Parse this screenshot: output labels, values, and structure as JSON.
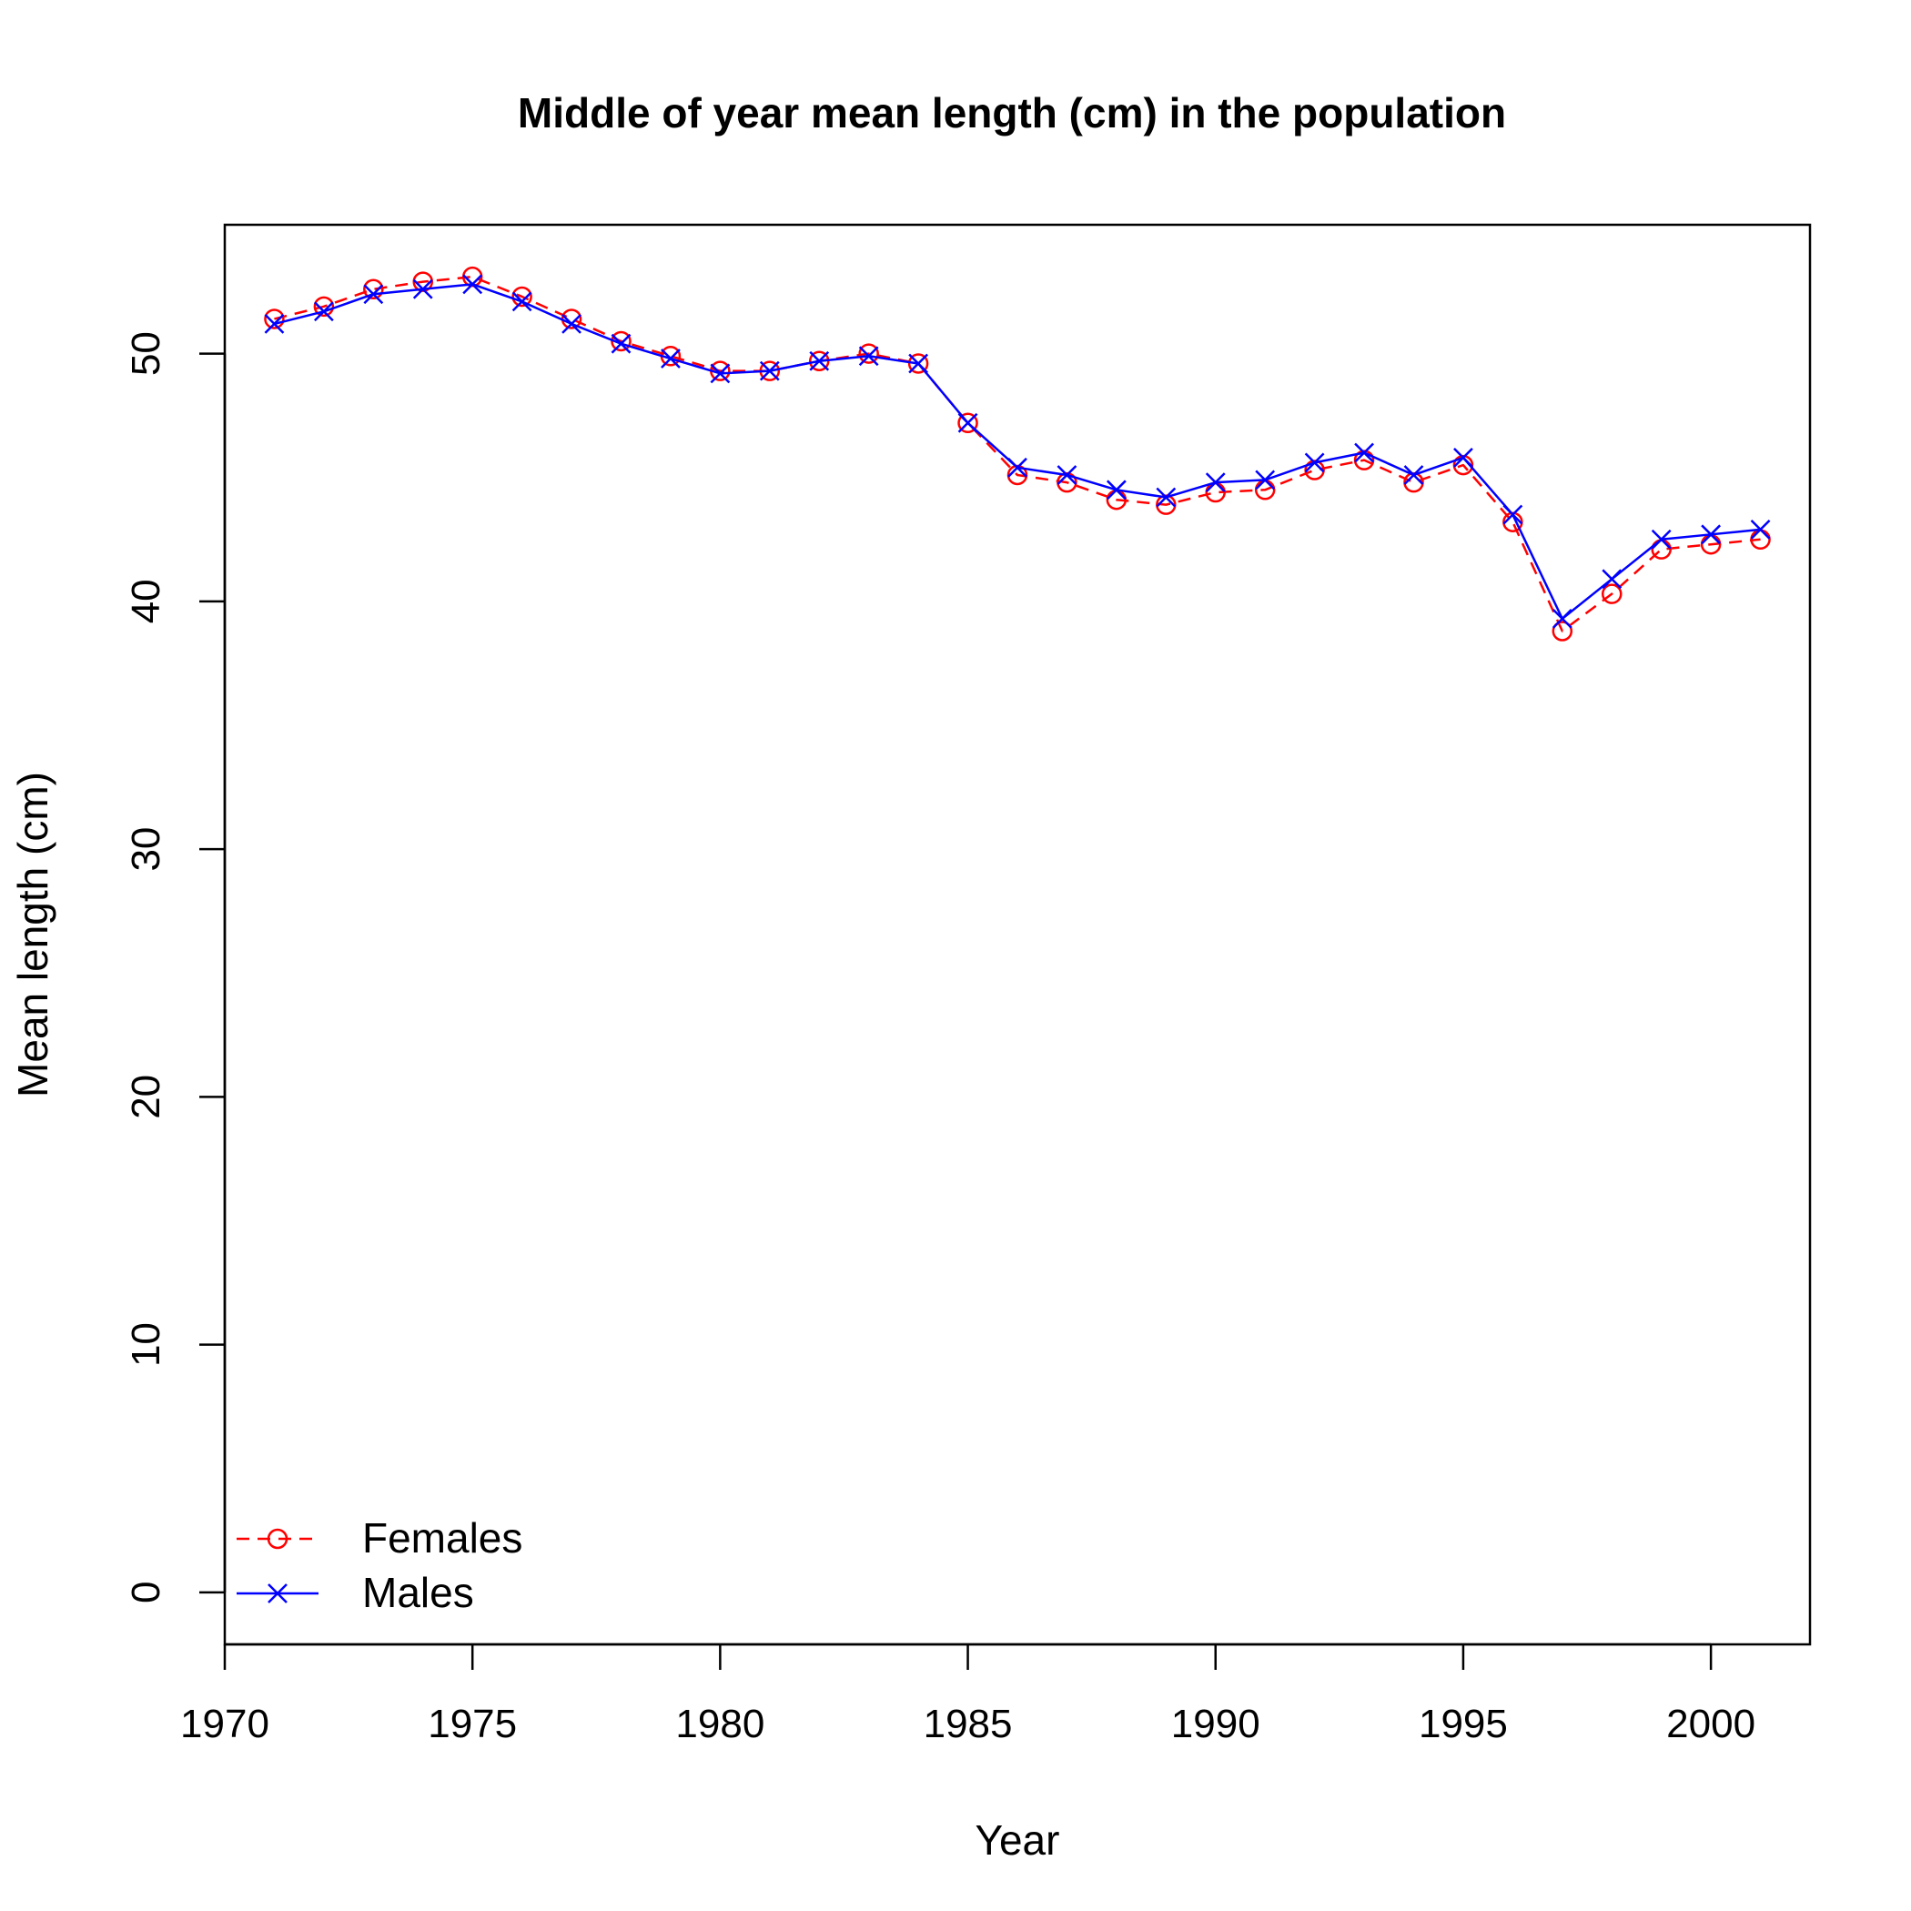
{
  "chart_data": {
    "type": "line",
    "title": "Middle of year mean length (cm) in the population",
    "xlabel": "Year",
    "ylabel": "Mean length (cm)",
    "xlim": [
      1970,
      2002
    ],
    "ylim": [
      -2.1,
      55.2
    ],
    "xticks": [
      1970,
      1975,
      1980,
      1985,
      1990,
      1995,
      2000
    ],
    "yticks": [
      0,
      10,
      20,
      30,
      40,
      50
    ],
    "grid": false,
    "legend_position": "bottom-left",
    "x": [
      1971,
      1972,
      1973,
      1974,
      1975,
      1976,
      1977,
      1978,
      1979,
      1980,
      1981,
      1982,
      1983,
      1984,
      1985,
      1986,
      1987,
      1988,
      1989,
      1990,
      1991,
      1992,
      1993,
      1994,
      1995,
      1996,
      1997,
      1998,
      1999,
      2000,
      2001
    ],
    "series": [
      {
        "name": "Females",
        "color": "#ff0000",
        "line": "dashed",
        "marker": "circle",
        "values": [
          51.4,
          51.9,
          52.6,
          52.9,
          53.1,
          52.3,
          51.4,
          50.5,
          49.9,
          49.3,
          49.3,
          49.7,
          50.0,
          49.6,
          47.2,
          45.1,
          44.8,
          44.1,
          43.9,
          44.4,
          44.5,
          45.3,
          45.7,
          44.8,
          45.5,
          43.2,
          38.8,
          40.3,
          42.1,
          42.3,
          42.5
        ]
      },
      {
        "name": "Males",
        "color": "#0000ff",
        "line": "solid",
        "marker": "x",
        "values": [
          51.2,
          51.7,
          52.4,
          52.6,
          52.8,
          52.1,
          51.2,
          50.4,
          49.8,
          49.2,
          49.3,
          49.7,
          49.9,
          49.6,
          47.2,
          45.4,
          45.1,
          44.5,
          44.2,
          44.8,
          44.9,
          45.6,
          46.0,
          45.1,
          45.8,
          43.5,
          39.3,
          40.9,
          42.5,
          42.7,
          42.9
        ]
      }
    ]
  }
}
